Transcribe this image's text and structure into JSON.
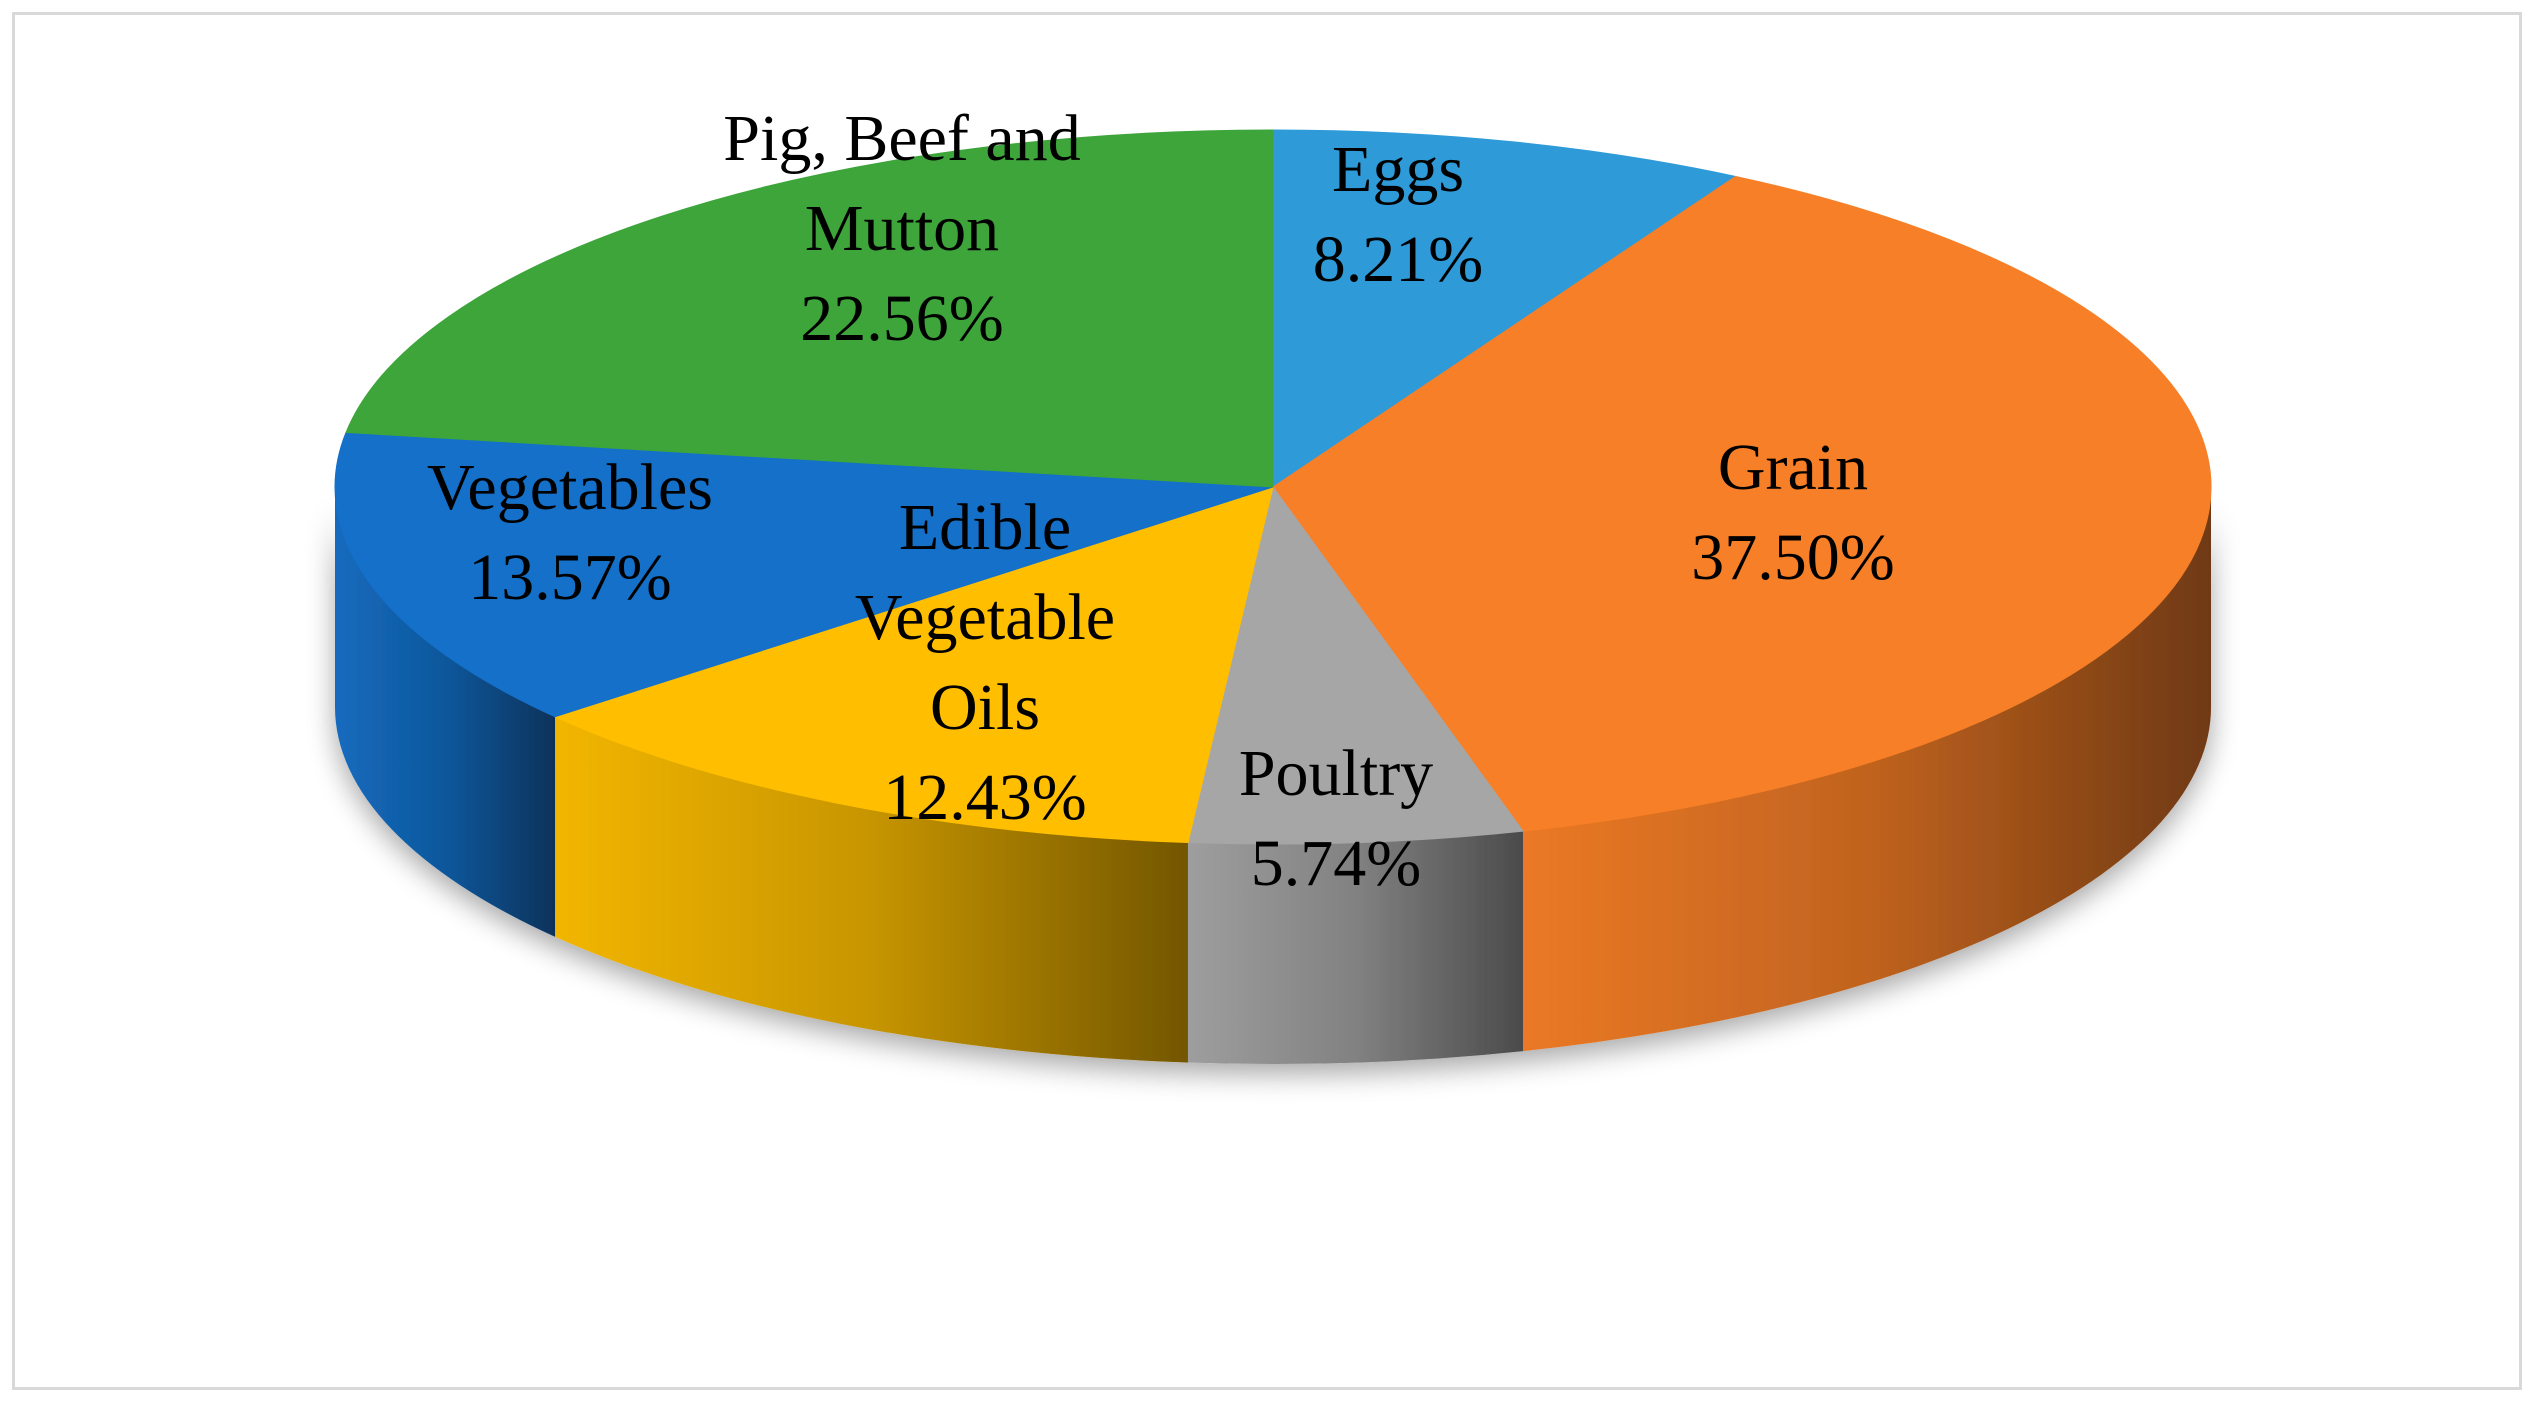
{
  "chart_data": {
    "type": "pie",
    "title": "",
    "style": "3d",
    "slices": [
      {
        "name": "Eggs",
        "value": 8.21,
        "label": "8.21%",
        "color": "#2e9ad8",
        "label_lines": [
          "Eggs",
          "8.21%"
        ]
      },
      {
        "name": "Grain",
        "value": 37.5,
        "label": "37.50%",
        "color": "#f77f27",
        "label_lines": [
          "Grain",
          "37.50%"
        ]
      },
      {
        "name": "Poultry",
        "value": 5.74,
        "label": "5.74%",
        "color": "#a6a6a6",
        "label_lines": [
          "Poultry",
          "5.74%"
        ]
      },
      {
        "name": "Edible Vegetable Oils",
        "value": 12.43,
        "label": "12.43%",
        "color": "#ffbf00",
        "label_lines": [
          "Edible",
          "Vegetable",
          "Oils",
          "12.43%"
        ]
      },
      {
        "name": "Vegetables",
        "value": 13.57,
        "label": "13.57%",
        "color": "#1470c8",
        "label_lines": [
          "Vegetables",
          "13.57%"
        ]
      },
      {
        "name": "Pig, Beef and Mutton",
        "value": 22.56,
        "label": "22.56%",
        "color": "#3da53a",
        "label_lines": [
          "Pig, Beef and",
          "Mutton",
          "22.56%"
        ]
      }
    ]
  }
}
